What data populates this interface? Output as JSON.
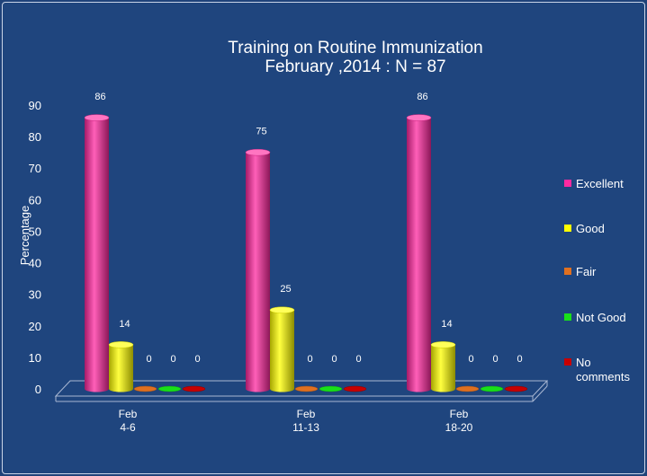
{
  "chart_data": {
    "type": "bar",
    "title": "Training on Routine Immunization",
    "subtitle": "February ,2014 : N = 87",
    "xlabel": "",
    "ylabel": "Percentage",
    "ylim": [
      0,
      90
    ],
    "yticks": [
      0,
      10,
      20,
      30,
      40,
      50,
      60,
      70,
      80,
      90
    ],
    "categories": [
      [
        "Feb",
        "4-6"
      ],
      [
        "Feb",
        "11-13"
      ],
      [
        "Feb",
        "18-20"
      ]
    ],
    "series": [
      {
        "name": "Excellent",
        "values": [
          86,
          75,
          86
        ],
        "color": "#ff2aa0"
      },
      {
        "name": "Good",
        "values": [
          14,
          25,
          14
        ],
        "color": "#ffff00"
      },
      {
        "name": "Fair",
        "values": [
          0,
          0,
          0
        ],
        "color": "#e07020"
      },
      {
        "name": "Not Good",
        "values": [
          0,
          0,
          0
        ],
        "color": "#19e019"
      },
      {
        "name": "No comments",
        "values": [
          0,
          0,
          0
        ],
        "color": "#c80000"
      }
    ],
    "legend_labels": [
      [
        "Excellent"
      ],
      [
        "Good"
      ],
      [
        "Fair"
      ],
      [
        "Not Good"
      ],
      [
        "No",
        "comments"
      ]
    ],
    "data_labels": [
      [
        86,
        75,
        86
      ],
      [
        14,
        25,
        14
      ],
      [
        0,
        0,
        0
      ],
      [
        0,
        0,
        0
      ],
      [
        0,
        0,
        0
      ]
    ],
    "legend_position": "right",
    "grid": false
  }
}
